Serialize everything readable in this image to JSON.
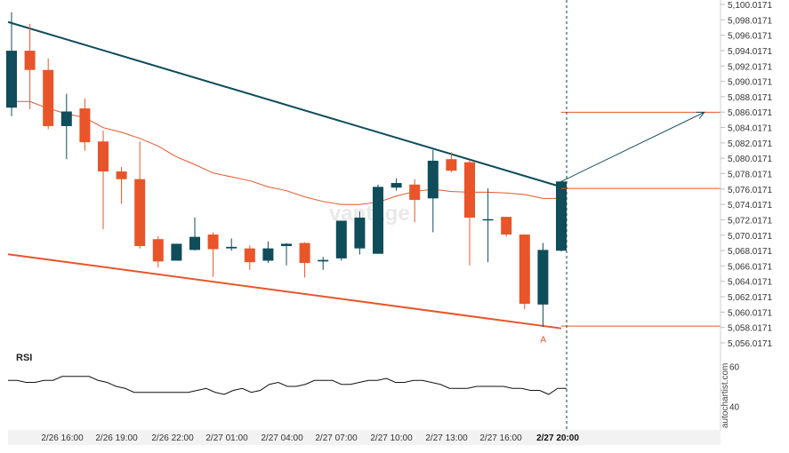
{
  "chart_data": {
    "type": "candlestick",
    "watermark": "vantage",
    "credit": "autochartist.com",
    "ylim": [
      5055.0171,
      5100.0171
    ],
    "y_ticks": [
      "5,100.0171",
      "5,098.0171",
      "5,096.0171",
      "5,094.0171",
      "5,092.0171",
      "5,090.0171",
      "5,088.0171",
      "5,086.0171",
      "5,084.0171",
      "5,082.0171",
      "5,080.0171",
      "5,078.0171",
      "5,076.0171",
      "5,074.0171",
      "5,072.0171",
      "5,070.0171",
      "5,068.0171",
      "5,066.0171",
      "5,064.0171",
      "5,062.0171",
      "5,060.0171",
      "5,058.0171",
      "5,056.0171"
    ],
    "x_labels": [
      "2/26 16:00",
      "2/26 19:00",
      "2/26 22:00",
      "2/27 01:00",
      "2/27 04:00",
      "2/27 07:00",
      "2/27 10:00",
      "2/27 13:00",
      "2/27 16:00",
      "2/27 20:00"
    ],
    "candles": [
      {
        "o": 5086.6,
        "h": 5099.0,
        "l": 5085.5,
        "c": 5094.0
      },
      {
        "o": 5094.0,
        "h": 5097.5,
        "l": 5086.4,
        "c": 5091.5
      },
      {
        "o": 5091.5,
        "h": 5093.0,
        "l": 5083.8,
        "c": 5084.2
      },
      {
        "o": 5084.2,
        "h": 5088.4,
        "l": 5079.9,
        "c": 5086.1
      },
      {
        "o": 5086.5,
        "h": 5087.8,
        "l": 5081.0,
        "c": 5082.1
      },
      {
        "o": 5082.2,
        "h": 5083.6,
        "l": 5070.8,
        "c": 5078.3
      },
      {
        "o": 5078.3,
        "h": 5078.9,
        "l": 5074.1,
        "c": 5077.3
      },
      {
        "o": 5077.3,
        "h": 5082.2,
        "l": 5068.3,
        "c": 5068.6
      },
      {
        "o": 5069.5,
        "h": 5069.9,
        "l": 5065.8,
        "c": 5066.6
      },
      {
        "o": 5066.7,
        "h": 5068.9,
        "l": 5066.7,
        "c": 5068.9
      },
      {
        "o": 5068.1,
        "h": 5072.3,
        "l": 5068.0,
        "c": 5069.8
      },
      {
        "o": 5070.1,
        "h": 5070.4,
        "l": 5064.6,
        "c": 5068.2
      },
      {
        "o": 5068.3,
        "h": 5069.6,
        "l": 5068.0,
        "c": 5068.5
      },
      {
        "o": 5068.3,
        "h": 5068.7,
        "l": 5065.5,
        "c": 5066.5
      },
      {
        "o": 5066.7,
        "h": 5069.2,
        "l": 5066.4,
        "c": 5068.3
      },
      {
        "o": 5068.6,
        "h": 5069.0,
        "l": 5066.1,
        "c": 5068.9
      },
      {
        "o": 5069.0,
        "h": 5069.1,
        "l": 5064.5,
        "c": 5066.4
      },
      {
        "o": 5066.6,
        "h": 5067.2,
        "l": 5065.5,
        "c": 5066.8
      },
      {
        "o": 5067.0,
        "h": 5071.9,
        "l": 5066.7,
        "c": 5071.9
      },
      {
        "o": 5068.3,
        "h": 5073.1,
        "l": 5067.5,
        "c": 5072.3
      },
      {
        "o": 5067.6,
        "h": 5076.6,
        "l": 5067.6,
        "c": 5076.3
      },
      {
        "o": 5076.2,
        "h": 5077.4,
        "l": 5075.8,
        "c": 5076.8
      },
      {
        "o": 5076.6,
        "h": 5077.3,
        "l": 5071.7,
        "c": 5074.6
      },
      {
        "o": 5074.8,
        "h": 5081.1,
        "l": 5070.4,
        "c": 5079.7
      },
      {
        "o": 5079.9,
        "h": 5080.8,
        "l": 5078.2,
        "c": 5078.4
      },
      {
        "o": 5079.5,
        "h": 5079.8,
        "l": 5066.1,
        "c": 5072.3
      },
      {
        "o": 5072.1,
        "h": 5076.1,
        "l": 5066.5,
        "c": 5072.1
      },
      {
        "o": 5072.4,
        "h": 5072.4,
        "l": 5069.8,
        "c": 5070.1
      },
      {
        "o": 5070.1,
        "h": 5070.1,
        "l": 5060.4,
        "c": 5061.1
      },
      {
        "o": 5061.0,
        "h": 5069.0,
        "l": 5058.1,
        "c": 5068.1
      },
      {
        "o": 5068.0,
        "h": 5077.1,
        "l": 5067.9,
        "c": 5077.0
      }
    ],
    "moving_average": [
      5087.4,
      5087.4,
      5086.5,
      5085.8,
      5085.3,
      5084.0,
      5083.4,
      5082.6,
      5081.6,
      5080.2,
      5079.2,
      5078.1,
      5077.6,
      5077.1,
      5076.3,
      5075.8,
      5075.0,
      5074.4,
      5074.0,
      5074.0,
      5074.3,
      5075.1,
      5075.7,
      5076.0,
      5075.7,
      5075.6,
      5075.6,
      5075.5,
      5075.3,
      5074.8,
      5074.8
    ],
    "upper_trendline": {
      "from": {
        "i": 0,
        "y": 5097.6
      },
      "to": {
        "i": 30,
        "y": 5076.3
      }
    },
    "lower_trendline": {
      "from": {
        "i": -1,
        "y": 5067.8
      },
      "to": {
        "i": 30,
        "y": 5057.9
      }
    },
    "forecast_arrow": {
      "from": {
        "i": 30,
        "y": 5077.0
      },
      "to": {
        "i": 38,
        "y": 5086.0
      }
    },
    "levels": [
      {
        "y": 5086.0,
        "from_i": 30
      },
      {
        "y": 5076.1,
        "from_i": 30
      },
      {
        "y": 5058.2,
        "from_i": 30
      }
    ],
    "point_label": {
      "text": "A",
      "i": 29,
      "y": 5057.0
    },
    "colors": {
      "bull": "#0f4d5a",
      "bear": "#e8552a",
      "trendline_upper": "#0f4d5a",
      "trendline_lower": "#e8552a",
      "moving_average": "#e8552a",
      "rsi": "#111111"
    },
    "rsi": {
      "label": "RSI",
      "ticks": [
        "60",
        "40"
      ],
      "range": [
        30,
        70
      ],
      "values": [
        53,
        53,
        52,
        52,
        53,
        53,
        55,
        55,
        55,
        55,
        53,
        52,
        50,
        49,
        47,
        47,
        47,
        47,
        47,
        47,
        47,
        48,
        49,
        47,
        46,
        48,
        49,
        47,
        48,
        51,
        52,
        50,
        50,
        51,
        53,
        53,
        53,
        51,
        51,
        52,
        53,
        53,
        54,
        52,
        52,
        53,
        53,
        52,
        51,
        49,
        49,
        49,
        50,
        50,
        50,
        50,
        49,
        49,
        48,
        48,
        46,
        49,
        49
      ]
    }
  }
}
